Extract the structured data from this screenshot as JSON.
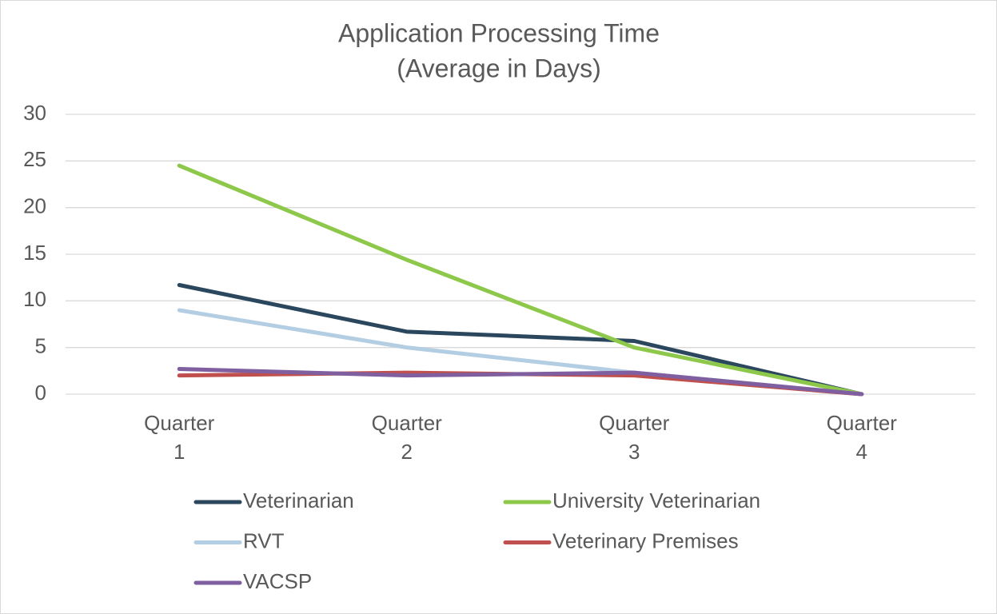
{
  "chart_data": {
    "type": "line",
    "title": "Application Processing Time",
    "subtitle": "(Average in Days)",
    "categories": [
      "Quarter 1",
      "Quarter 2",
      "Quarter 3",
      "Quarter 4"
    ],
    "series": [
      {
        "name": "Veterinarian",
        "color": "#2a475e",
        "values": [
          11.7,
          6.7,
          5.7,
          0
        ]
      },
      {
        "name": "University Veterinarian",
        "color": "#8dc84b",
        "values": [
          24.5,
          14.4,
          5.0,
          0
        ]
      },
      {
        "name": "RVT",
        "color": "#b3cde3",
        "values": [
          9.0,
          5.0,
          2.3,
          0
        ]
      },
      {
        "name": "Veterinary Premises",
        "color": "#c0504d",
        "values": [
          2.0,
          2.3,
          2.0,
          0
        ]
      },
      {
        "name": "VACSP",
        "color": "#7f5fa0",
        "values": [
          2.7,
          2.0,
          2.3,
          0
        ]
      }
    ],
    "ylim": [
      0,
      30
    ],
    "yticks": [
      0,
      5,
      10,
      15,
      20,
      25,
      30
    ],
    "grid": true
  }
}
